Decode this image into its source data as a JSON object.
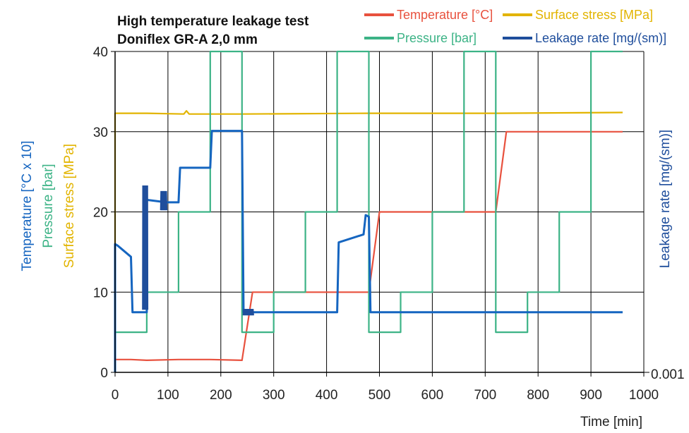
{
  "chart_data": {
    "type": "line",
    "title": "High temperature leakage test",
    "subtitle": "Doniflex GR-A  2,0 mm",
    "xlabel": "Time [min]",
    "ylabel_left": [
      "Temperature [°C x 10]",
      "Pressure [bar]",
      "Surface stress [MPa]"
    ],
    "ylabel_right": "Leakage rate [mg/(sm)]",
    "xlim": [
      0,
      1000
    ],
    "ylim": [
      0,
      40
    ],
    "x_ticks": [
      "0",
      "100",
      "200",
      "300",
      "400",
      "500",
      "600",
      "700",
      "800",
      "900",
      "1000"
    ],
    "y_ticks": [
      "0",
      "10",
      "20",
      "30",
      "40"
    ],
    "right_tick": "0.001",
    "grid": true,
    "legend_position": "top",
    "colors": {
      "temperature": "#e8513e",
      "pressure": "#3cb386",
      "surface_stress": "#e2b400",
      "leakage": "#1565c0",
      "leakage_dark": "#1f4e9c"
    },
    "series": [
      {
        "name": "Temperature [°C]",
        "color": "#e8513e",
        "x": [
          0,
          30,
          60,
          120,
          180,
          240,
          260,
          360,
          480,
          500,
          600,
          720,
          740,
          960
        ],
        "y": [
          1.6,
          1.6,
          1.5,
          1.6,
          1.6,
          1.5,
          10,
          10,
          10,
          20,
          20,
          20,
          30,
          30
        ]
      },
      {
        "name": "Pressure [bar]",
        "color": "#3cb386",
        "x": [
          0,
          0,
          60,
          60,
          120,
          120,
          180,
          180,
          240,
          240,
          300,
          300,
          360,
          360,
          420,
          420,
          480,
          480,
          540,
          540,
          600,
          600,
          660,
          660,
          720,
          720,
          780,
          780,
          840,
          840,
          900,
          900,
          960
        ],
        "y": [
          0,
          5,
          5,
          10,
          10,
          20,
          20,
          40,
          40,
          5,
          5,
          10,
          10,
          20,
          20,
          40,
          40,
          5,
          5,
          10,
          10,
          20,
          20,
          40,
          40,
          5,
          5,
          10,
          10,
          20,
          20,
          40,
          40
        ]
      },
      {
        "name": "Surface stress [MPa]",
        "color": "#e2b400",
        "x": [
          0,
          0,
          60,
          130,
          135,
          140,
          240,
          480,
          720,
          960
        ],
        "y": [
          0,
          32.3,
          32.3,
          32.2,
          32.6,
          32.2,
          32.2,
          32.3,
          32.3,
          32.4
        ]
      },
      {
        "name": "Leakage rate [mg/(sm)]",
        "color": "#1565c0",
        "x": [
          0,
          0,
          5,
          30,
          33,
          60,
          60,
          85,
          90,
          120,
          123,
          180,
          183,
          240,
          243,
          420,
          423,
          470,
          474,
          480,
          483,
          960
        ],
        "y": [
          0,
          16,
          15.8,
          14.4,
          7.5,
          7.5,
          21.5,
          21.3,
          21.2,
          21.2,
          25.5,
          25.5,
          30.1,
          30.1,
          7.5,
          7.5,
          16.2,
          17.2,
          19.6,
          19.4,
          7.5,
          7.5
        ]
      }
    ]
  }
}
